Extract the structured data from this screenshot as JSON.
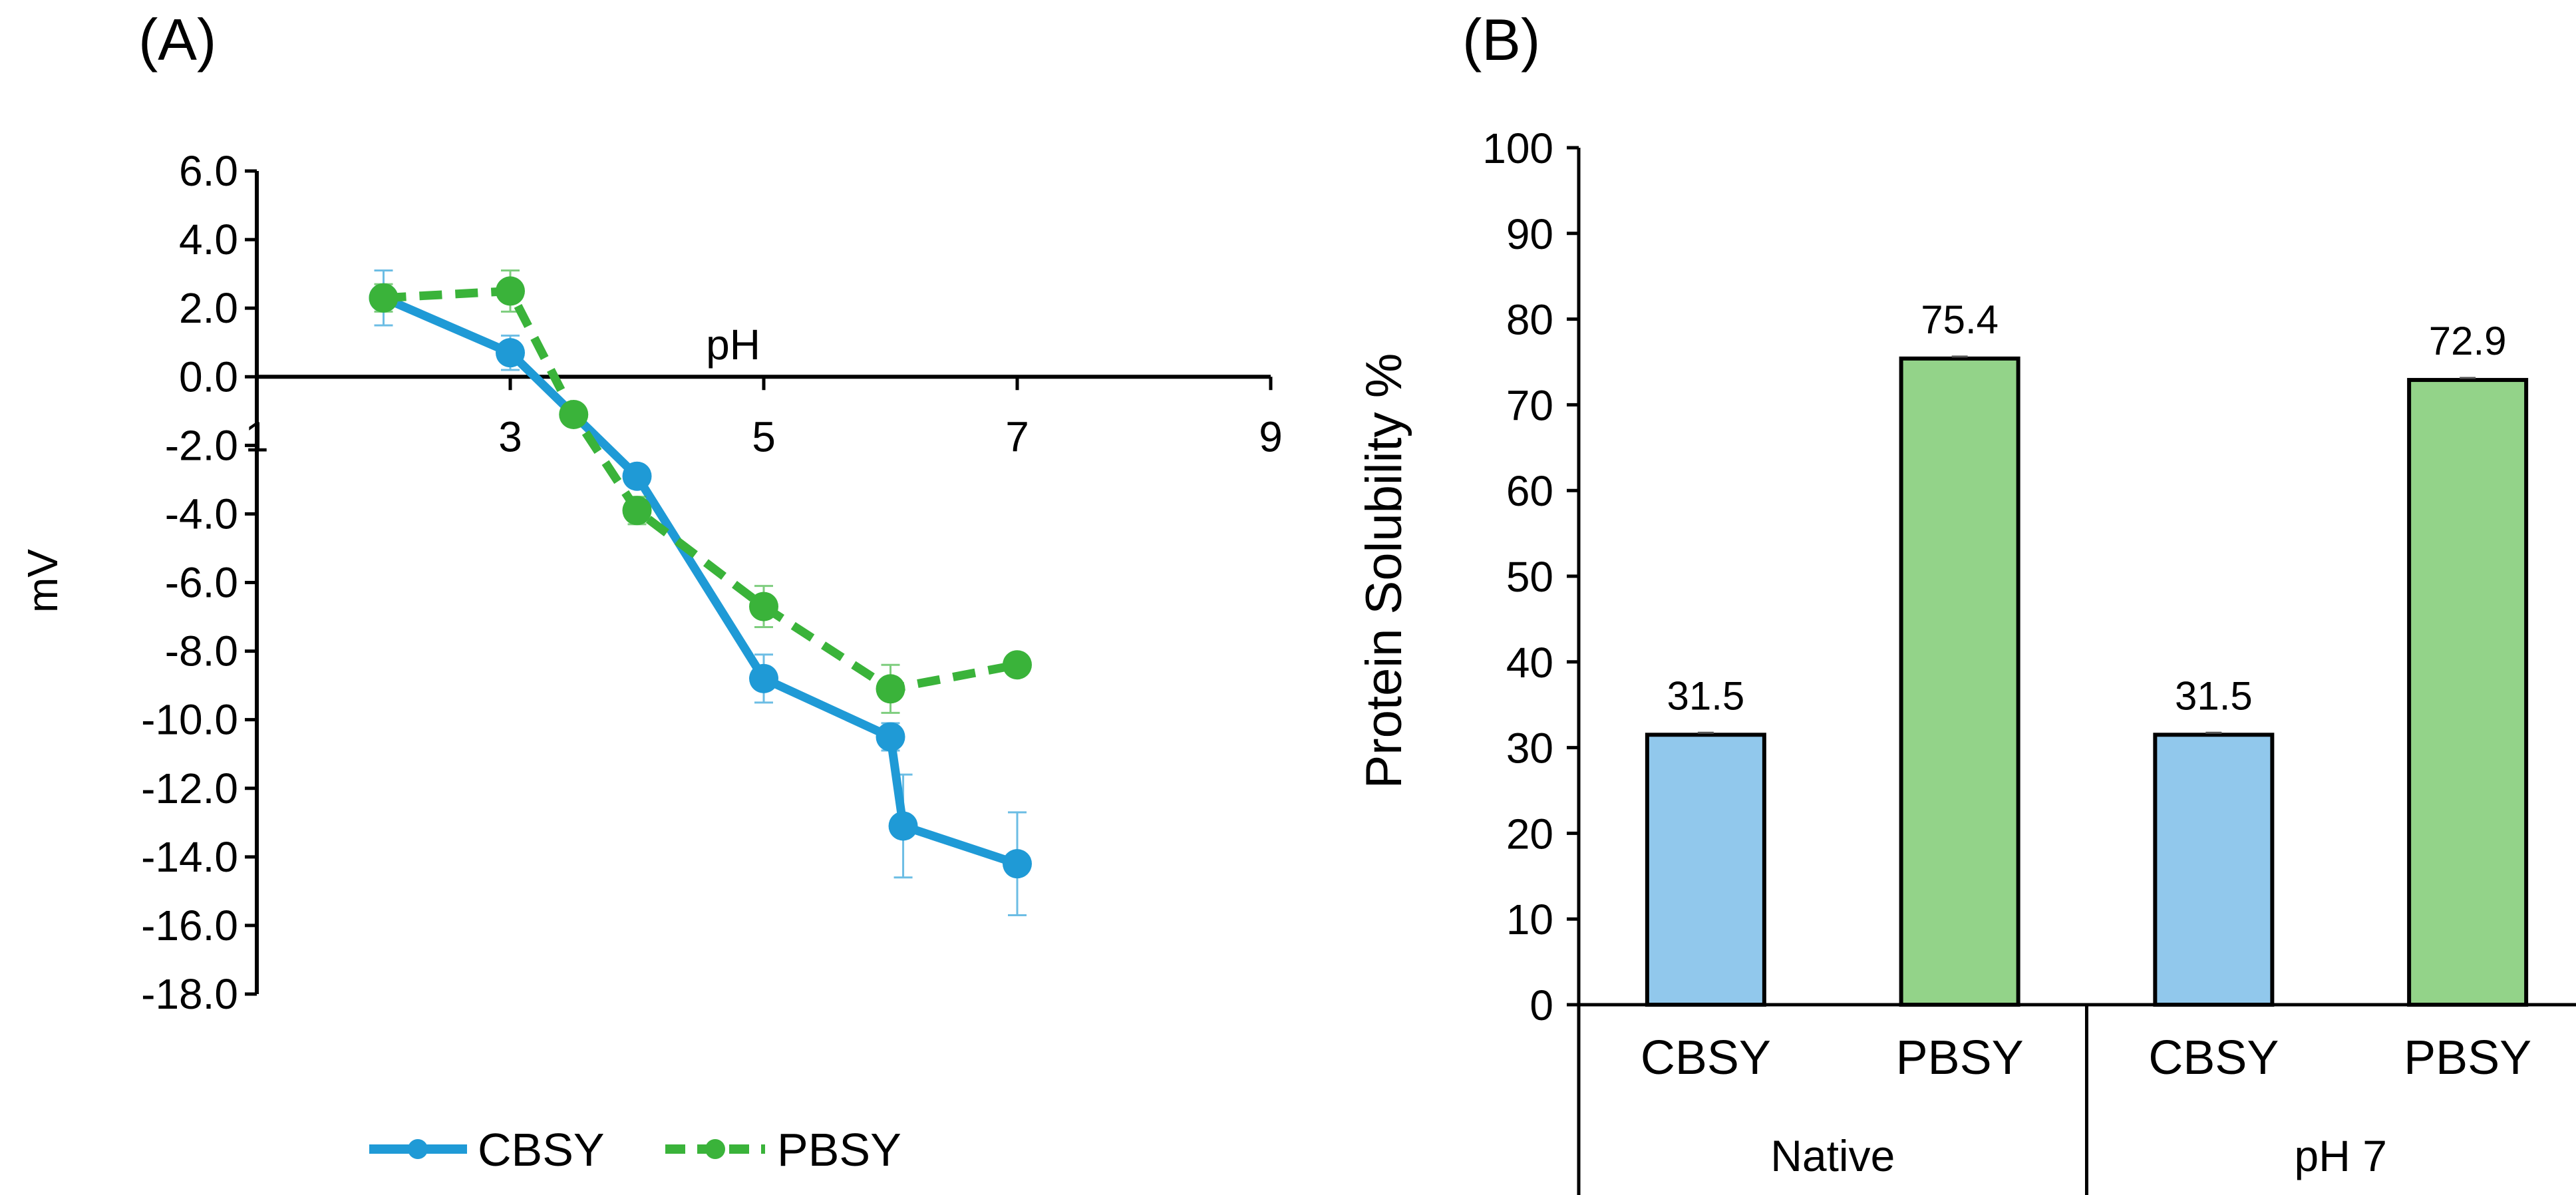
{
  "chart_data": [
    {
      "panel": "(A)",
      "type": "line",
      "xlabel": "pH",
      "ylabel": "mV",
      "xlim": [
        1,
        9
      ],
      "ylim": [
        -18,
        6
      ],
      "xticks": [
        1,
        3,
        5,
        7,
        9
      ],
      "xtick_labels": [
        "1",
        "3",
        "5",
        "7",
        "9"
      ],
      "yticks": [
        6,
        4,
        2,
        0,
        -2,
        -4,
        -6,
        -8,
        -10,
        -12,
        -14,
        -16,
        -18
      ],
      "ytick_labels": [
        "6.0",
        "4.0",
        "2.0",
        "0.0",
        "-2.0",
        "-4.0",
        "-6.0",
        "-8.0",
        "-10.0",
        "-12.0",
        "-14.0",
        "-16.0",
        "-18.0"
      ],
      "legend_position": "bottom",
      "series": [
        {
          "name": "CBSY",
          "color": "#1f9ad6",
          "style": "solid",
          "x": [
            2,
            3,
            4,
            5,
            6,
            6.1,
            7
          ],
          "y": [
            2.3,
            0.7,
            -2.9,
            -8.8,
            -10.5,
            -13.1,
            -14.2
          ],
          "err": [
            0.8,
            0.5,
            0.3,
            0.7,
            0.4,
            1.5,
            1.5
          ]
        },
        {
          "name": "PBSY",
          "color": "#3ab33a",
          "style": "dashed",
          "x": [
            2,
            3,
            3.5,
            4,
            5,
            6,
            7
          ],
          "y": [
            2.3,
            2.5,
            -1.1,
            -3.9,
            -6.7,
            -9.1,
            -8.4
          ],
          "err": [
            0.4,
            0.6,
            0.2,
            0.4,
            0.6,
            0.7,
            0.2
          ]
        }
      ]
    },
    {
      "panel": "(B)",
      "type": "bar",
      "ylabel": "Protein Solubility %",
      "ylim": [
        0,
        100
      ],
      "yticks": [
        0,
        10,
        20,
        30,
        40,
        50,
        60,
        70,
        80,
        90,
        100
      ],
      "ytick_labels": [
        "0",
        "10",
        "20",
        "30",
        "40",
        "50",
        "60",
        "70",
        "80",
        "90",
        "100"
      ],
      "groups": [
        "Native",
        "pH 7"
      ],
      "bars": [
        {
          "category": "CBSY",
          "group": "Native",
          "value": 31.5,
          "label": "31.5",
          "color": "#91c8ec"
        },
        {
          "category": "PBSY",
          "group": "Native",
          "value": 75.4,
          "label": "75.4",
          "color": "#93d389"
        },
        {
          "category": "CBSY",
          "group": "pH 7",
          "value": 31.5,
          "label": "31.5",
          "color": "#91c8ec"
        },
        {
          "category": "PBSY",
          "group": "pH 7",
          "value": 72.9,
          "label": "72.9",
          "color": "#93d389"
        }
      ]
    }
  ]
}
